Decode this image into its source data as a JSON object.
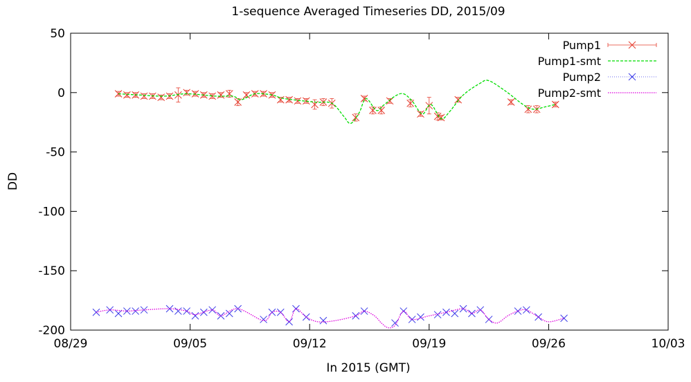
{
  "chart_data": {
    "type": "line",
    "title": "1-sequence Averaged Timeseries DD, 2015/09",
    "xlabel": "In 2015 (GMT)",
    "ylabel": "DD",
    "x_range_days": [
      0,
      35
    ],
    "x_ticks": [
      {
        "day": 0,
        "label": "08/29"
      },
      {
        "day": 7,
        "label": "09/05"
      },
      {
        "day": 14,
        "label": "09/12"
      },
      {
        "day": 21,
        "label": "09/19"
      },
      {
        "day": 28,
        "label": "09/26"
      },
      {
        "day": 35,
        "label": "10/03"
      }
    ],
    "ylim": [
      -200,
      50
    ],
    "y_ticks": [
      50,
      0,
      -50,
      -100,
      -150,
      -200
    ],
    "legend_position": "top-right",
    "series": [
      {
        "name": "Pump1",
        "style": "points-errorbars",
        "color": "#e53b2c",
        "points": [
          [
            2.8,
            -1
          ],
          [
            3.3,
            -2
          ],
          [
            3.8,
            -2
          ],
          [
            4.3,
            -3
          ],
          [
            4.8,
            -3
          ],
          [
            5.3,
            -4
          ],
          [
            5.8,
            -3
          ],
          [
            6.3,
            -2
          ],
          [
            6.8,
            0
          ],
          [
            7.3,
            -1
          ],
          [
            7.8,
            -2
          ],
          [
            8.3,
            -3
          ],
          [
            8.8,
            -2
          ],
          [
            9.3,
            -1
          ],
          [
            9.8,
            -8
          ],
          [
            10.3,
            -2
          ],
          [
            10.8,
            -1
          ],
          [
            11.3,
            -1
          ],
          [
            11.8,
            -2
          ],
          [
            12.3,
            -6
          ],
          [
            12.8,
            -6
          ],
          [
            13.3,
            -7
          ],
          [
            13.8,
            -7
          ],
          [
            14.3,
            -10
          ],
          [
            14.8,
            -8
          ],
          [
            15.3,
            -9
          ],
          [
            16.7,
            -21
          ],
          [
            17.2,
            -5
          ],
          [
            17.7,
            -15
          ],
          [
            18.2,
            -15
          ],
          [
            18.7,
            -7
          ],
          [
            19.9,
            -9
          ],
          [
            20.5,
            -18
          ],
          [
            21.0,
            -11
          ],
          [
            21.5,
            -20
          ],
          [
            21.7,
            -21
          ],
          [
            22.7,
            -6
          ],
          [
            25.8,
            -8
          ],
          [
            26.8,
            -14
          ],
          [
            27.3,
            -14
          ],
          [
            28.4,
            -10
          ]
        ],
        "errors": [
          2,
          2,
          2,
          2,
          2,
          2,
          2,
          6,
          2,
          2,
          2,
          2,
          2,
          3,
          3,
          2,
          2,
          2,
          2,
          2,
          2,
          2,
          2,
          4,
          3,
          4,
          3,
          2,
          3,
          3,
          2,
          3,
          2,
          7,
          3,
          2,
          2,
          2,
          3,
          3,
          2
        ]
      },
      {
        "name": "Pump1-smt",
        "style": "dashed-line",
        "color": "#00dd00",
        "points": [
          [
            2.8,
            -1
          ],
          [
            4.0,
            -2
          ],
          [
            5.5,
            -3
          ],
          [
            6.8,
            -1
          ],
          [
            8.5,
            -3
          ],
          [
            9.5,
            -3
          ],
          [
            10.0,
            -6
          ],
          [
            10.8,
            -1
          ],
          [
            11.8,
            -2
          ],
          [
            12.5,
            -5
          ],
          [
            14.3,
            -8
          ],
          [
            15.3,
            -9
          ],
          [
            16.0,
            -20
          ],
          [
            16.4,
            -26
          ],
          [
            16.9,
            -17
          ],
          [
            17.3,
            -5
          ],
          [
            17.9,
            -15
          ],
          [
            18.3,
            -11
          ],
          [
            19.0,
            -3
          ],
          [
            19.5,
            -1
          ],
          [
            20.0,
            -7
          ],
          [
            20.6,
            -18
          ],
          [
            21.1,
            -10
          ],
          [
            21.7,
            -22
          ],
          [
            22.2,
            -16
          ],
          [
            23.0,
            -2
          ],
          [
            24.0,
            8
          ],
          [
            24.5,
            10
          ],
          [
            25.5,
            1
          ],
          [
            26.5,
            -10
          ],
          [
            27.1,
            -14
          ],
          [
            27.8,
            -12
          ],
          [
            28.4,
            -10
          ]
        ]
      },
      {
        "name": "Pump2",
        "style": "points",
        "color": "#3a3ae8",
        "points": [
          [
            1.5,
            -185
          ],
          [
            2.3,
            -183
          ],
          [
            2.8,
            -186
          ],
          [
            3.3,
            -184
          ],
          [
            3.8,
            -184
          ],
          [
            4.3,
            -183
          ],
          [
            5.8,
            -182
          ],
          [
            6.3,
            -184
          ],
          [
            6.8,
            -184
          ],
          [
            7.3,
            -188
          ],
          [
            7.8,
            -185
          ],
          [
            8.3,
            -183
          ],
          [
            8.8,
            -188
          ],
          [
            9.3,
            -186
          ],
          [
            9.8,
            -182
          ],
          [
            11.3,
            -191
          ],
          [
            11.8,
            -185
          ],
          [
            12.3,
            -185
          ],
          [
            12.8,
            -193
          ],
          [
            13.2,
            -182
          ],
          [
            13.8,
            -189
          ],
          [
            14.8,
            -192
          ],
          [
            16.7,
            -188
          ],
          [
            17.2,
            -184
          ],
          [
            19.0,
            -194
          ],
          [
            19.5,
            -184
          ],
          [
            20.0,
            -191
          ],
          [
            20.5,
            -189
          ],
          [
            21.5,
            -187
          ],
          [
            22.0,
            -185
          ],
          [
            22.5,
            -186
          ],
          [
            23.0,
            -182
          ],
          [
            23.5,
            -186
          ],
          [
            24.0,
            -183
          ],
          [
            24.5,
            -191
          ],
          [
            26.2,
            -184
          ],
          [
            26.7,
            -183
          ],
          [
            27.4,
            -189
          ],
          [
            28.9,
            -190
          ]
        ]
      },
      {
        "name": "Pump2-smt",
        "style": "dotted-line",
        "color": "#dd00dd",
        "points": [
          [
            1.5,
            -185
          ],
          [
            2.3,
            -183
          ],
          [
            3.3,
            -184
          ],
          [
            4.3,
            -183
          ],
          [
            5.8,
            -182
          ],
          [
            6.8,
            -184
          ],
          [
            7.3,
            -187
          ],
          [
            8.3,
            -183
          ],
          [
            8.8,
            -188
          ],
          [
            9.8,
            -182
          ],
          [
            11.3,
            -192
          ],
          [
            11.8,
            -185
          ],
          [
            12.3,
            -185
          ],
          [
            12.8,
            -193
          ],
          [
            13.2,
            -182
          ],
          [
            13.8,
            -189
          ],
          [
            14.5,
            -193
          ],
          [
            15.5,
            -192
          ],
          [
            16.7,
            -188
          ],
          [
            17.2,
            -184
          ],
          [
            17.8,
            -188
          ],
          [
            18.2,
            -194
          ],
          [
            18.6,
            -198
          ],
          [
            19.0,
            -196
          ],
          [
            19.5,
            -184
          ],
          [
            20.0,
            -191
          ],
          [
            21.0,
            -188
          ],
          [
            22.0,
            -185
          ],
          [
            23.0,
            -182
          ],
          [
            23.5,
            -186
          ],
          [
            24.0,
            -183
          ],
          [
            24.5,
            -191
          ],
          [
            25.0,
            -194
          ],
          [
            25.6,
            -188
          ],
          [
            26.2,
            -184
          ],
          [
            26.7,
            -183
          ],
          [
            27.4,
            -189
          ],
          [
            28.0,
            -193
          ],
          [
            28.9,
            -190
          ]
        ]
      }
    ]
  }
}
